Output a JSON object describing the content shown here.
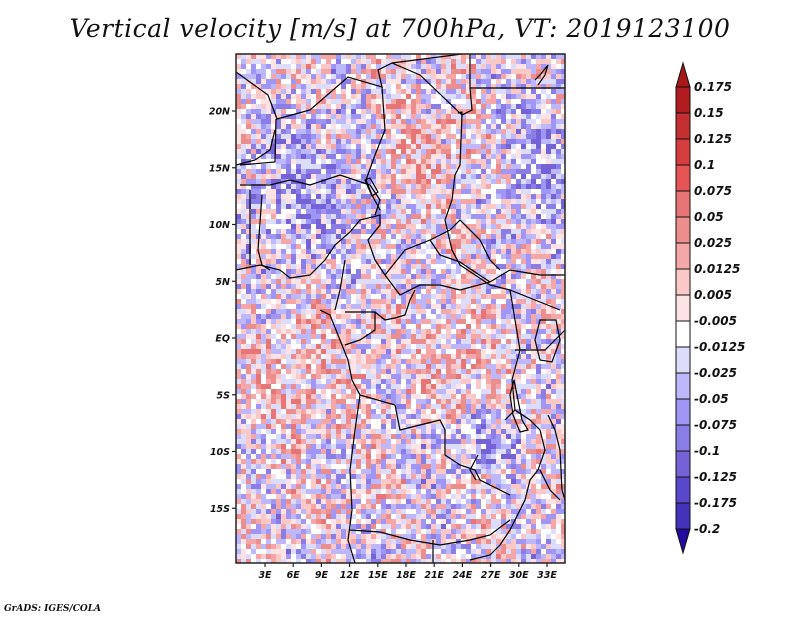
{
  "title": "Vertical velocity [m/s] at 700hPa, VT: 2019123100",
  "credit": "GrADS: IGES/COLA",
  "map": {
    "region": "Central Africa",
    "lon_range": [
      0,
      35
    ],
    "lat_range": [
      -19,
      25
    ],
    "lat_ticks": [
      {
        "label": "20N",
        "value": 20
      },
      {
        "label": "15N",
        "value": 15
      },
      {
        "label": "10N",
        "value": 10
      },
      {
        "label": "5N",
        "value": 5
      },
      {
        "label": "EQ",
        "value": 0
      },
      {
        "label": "5S",
        "value": -5
      },
      {
        "label": "10S",
        "value": -10
      },
      {
        "label": "15S",
        "value": -15
      }
    ],
    "lon_ticks": [
      {
        "label": "3E",
        "value": 3
      },
      {
        "label": "6E",
        "value": 6
      },
      {
        "label": "9E",
        "value": 9
      },
      {
        "label": "12E",
        "value": 12
      },
      {
        "label": "15E",
        "value": 15
      },
      {
        "label": "18E",
        "value": 18
      },
      {
        "label": "21E",
        "value": 21
      },
      {
        "label": "24E",
        "value": 24
      },
      {
        "label": "27E",
        "value": 27
      },
      {
        "label": "30E",
        "value": 30
      },
      {
        "label": "33E",
        "value": 33
      }
    ]
  },
  "colorbar": {
    "labels": [
      "0.175",
      "0.15",
      "0.125",
      "0.1",
      "0.075",
      "0.05",
      "0.025",
      "0.0125",
      "0.005",
      "-0.005",
      "-0.0125",
      "-0.025",
      "-0.05",
      "-0.075",
      "-0.1",
      "-0.125",
      "-0.175",
      "-0.2"
    ],
    "colors": [
      "#b01c20",
      "#c42f32",
      "#d63d3f",
      "#e65555",
      "#e87575",
      "#ec8e8e",
      "#f5a6a6",
      "#fbc8c8",
      "#fde3e3",
      "#ffffff",
      "#dcdcfb",
      "#bdb8fb",
      "#a096f5",
      "#8a7ee6",
      "#7562d6",
      "#5a48cc",
      "#4333bb",
      "#3322a8"
    ],
    "top_arrow_color": "#a81818",
    "bottom_arrow_color": "#240ca0"
  }
}
